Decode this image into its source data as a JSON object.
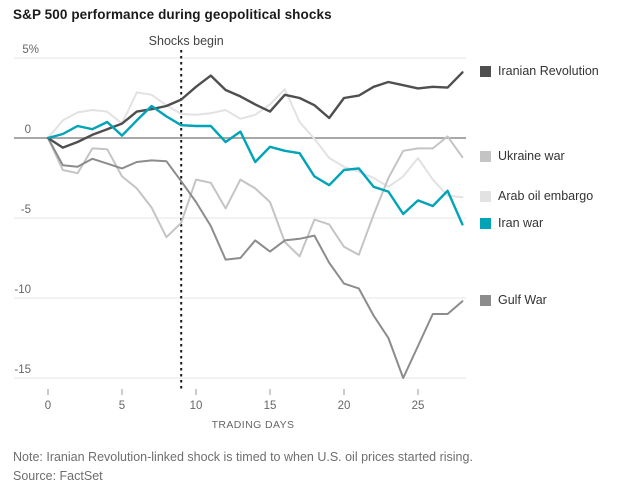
{
  "title": "S&P 500 performance during geopolitical shocks",
  "annotation": "Shocks begin",
  "note": "Note: Iranian Revolution-linked shock is timed to when U.S. oil prices started rising.",
  "source": "Source: FactSet",
  "colors": {
    "iranian_revolution": "#4f4f4f",
    "ukraine_war": "#c4c4c4",
    "arab_oil_embargo": "#e2e2e2",
    "iran_war": "#00a3b8",
    "gulf_war": "#8c8c8c",
    "gridline": "#e6e6e6",
    "zero_line": "#9b9b9b",
    "axis_text": "#666666",
    "shock_line": "#1a1a1a"
  },
  "legend": [
    {
      "label": "Iranian Revolution",
      "color": "#4f4f4f"
    },
    {
      "label": "Ukraine war",
      "color": "#c4c4c4"
    },
    {
      "label": "Arab oil embargo",
      "color": "#e2e2e2"
    },
    {
      "label": "Iran war",
      "color": "#00a3b8"
    },
    {
      "label": "Gulf War",
      "color": "#8c8c8c"
    }
  ],
  "chart_data": {
    "type": "line",
    "title": "S&P 500 performance during geopolitical shocks",
    "xlabel": "TRADING DAYS",
    "ylabel": "",
    "x": [
      0,
      1,
      2,
      3,
      4,
      5,
      6,
      7,
      8,
      9,
      10,
      11,
      12,
      13,
      14,
      15,
      16,
      17,
      18,
      19,
      20,
      21,
      22,
      23,
      24,
      25,
      26,
      27,
      28
    ],
    "xlim": [
      0,
      28.5
    ],
    "ylim": [
      -15.5,
      5
    ],
    "x_ticks": [
      0,
      5,
      10,
      15,
      20,
      25
    ],
    "y_ticks": [
      {
        "value": 5,
        "label": "5%"
      },
      {
        "value": 0,
        "label": "0"
      },
      {
        "value": -5,
        "label": "-5"
      },
      {
        "value": -10,
        "label": "-10"
      },
      {
        "value": -15,
        "label": "-15"
      }
    ],
    "shock_day": 9,
    "grid": "horizontal",
    "legend_position": "right",
    "series": [
      {
        "name": "Arab oil embargo",
        "color": "#e2e2e2",
        "width": 2,
        "values": [
          0,
          1.1,
          1.6,
          1.75,
          1.65,
          0.9,
          2.85,
          2.7,
          2.05,
          1.5,
          1.45,
          1.55,
          1.75,
          1.2,
          1.45,
          2.1,
          3.05,
          1.0,
          -0.05,
          -1.25,
          -1.8,
          -2.1,
          -2.5,
          -3.05,
          -2.4,
          -1.25,
          -2.6,
          -3.6,
          -3.7
        ]
      },
      {
        "name": "Ukraine war",
        "color": "#c4c4c4",
        "width": 2,
        "values": [
          0,
          -2.0,
          -2.2,
          -0.65,
          -0.7,
          -2.4,
          -3.15,
          -4.35,
          -6.2,
          -5.3,
          -2.6,
          -2.8,
          -4.4,
          -2.6,
          -3.15,
          -4.0,
          -6.5,
          -7.4,
          -5.1,
          -5.4,
          -6.8,
          -7.3,
          -4.8,
          -2.5,
          -0.8,
          -0.65,
          -0.65,
          0.1,
          -1.2
        ]
      },
      {
        "name": "Gulf War",
        "color": "#8c8c8c",
        "width": 2,
        "values": [
          0,
          -1.7,
          -1.8,
          -1.3,
          -1.6,
          -1.9,
          -1.5,
          -1.4,
          -1.45,
          -2.7,
          -4.0,
          -5.5,
          -7.6,
          -7.5,
          -6.4,
          -7.1,
          -6.4,
          -6.3,
          -6.1,
          -7.8,
          -9.1,
          -9.4,
          -11.1,
          -12.5,
          -15.0,
          -13.0,
          -11.0,
          -11.0,
          -10.2
        ]
      },
      {
        "name": "Iranian Revolution",
        "color": "#4f4f4f",
        "width": 2.4,
        "values": [
          0,
          -0.6,
          -0.25,
          0.2,
          0.55,
          0.9,
          1.65,
          1.8,
          2.0,
          2.4,
          3.2,
          3.9,
          3.0,
          2.6,
          2.1,
          1.65,
          2.7,
          2.5,
          2.05,
          1.25,
          2.5,
          2.65,
          3.2,
          3.5,
          3.3,
          3.1,
          3.2,
          3.15,
          4.1
        ]
      },
      {
        "name": "Iran war",
        "color": "#00a3b8",
        "width": 2.4,
        "values": [
          0,
          0.25,
          0.75,
          0.55,
          1.0,
          0.15,
          1.1,
          2.0,
          1.35,
          0.8,
          0.75,
          0.75,
          -0.25,
          0.4,
          -1.5,
          -0.55,
          -0.8,
          -0.95,
          -2.4,
          -2.95,
          -2.0,
          -1.9,
          -3.05,
          -3.35,
          -4.75,
          -3.9,
          -4.25,
          -3.3,
          -5.4
        ]
      }
    ]
  }
}
